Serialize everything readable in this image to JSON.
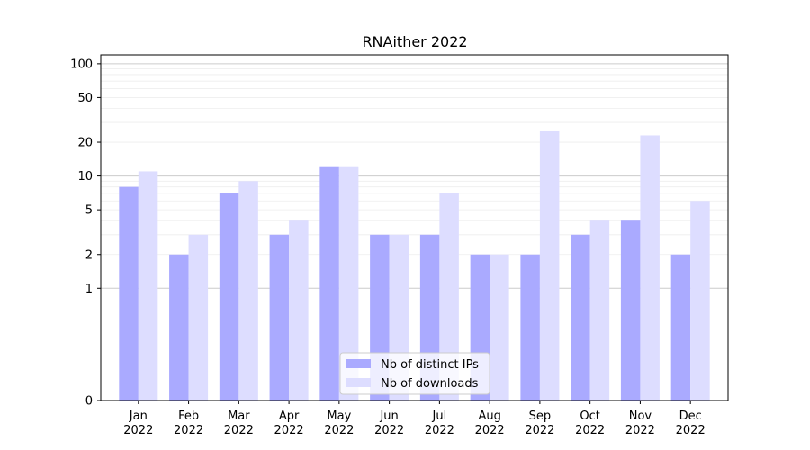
{
  "chart_data": {
    "type": "bar",
    "title": "RNAither 2022",
    "xlabel": "",
    "ylabel": "",
    "yscale": "symlog",
    "ylim": [
      0,
      120
    ],
    "yticks": [
      0,
      1,
      2,
      5,
      10,
      20,
      50,
      100
    ],
    "grid": true,
    "legend_position": "bottom-center",
    "categories": [
      [
        "Jan",
        "2022"
      ],
      [
        "Feb",
        "2022"
      ],
      [
        "Mar",
        "2022"
      ],
      [
        "Apr",
        "2022"
      ],
      [
        "May",
        "2022"
      ],
      [
        "Jun",
        "2022"
      ],
      [
        "Jul",
        "2022"
      ],
      [
        "Aug",
        "2022"
      ],
      [
        "Sep",
        "2022"
      ],
      [
        "Oct",
        "2022"
      ],
      [
        "Nov",
        "2022"
      ],
      [
        "Dec",
        "2022"
      ]
    ],
    "series": [
      {
        "name": "Nb of distinct IPs",
        "color": "#aaaaff",
        "values": [
          8,
          2,
          7,
          3,
          12,
          3,
          3,
          2,
          2,
          3,
          4,
          2
        ]
      },
      {
        "name": "Nb of downloads",
        "color": "#ddddff",
        "values": [
          11,
          3,
          9,
          4,
          12,
          3,
          7,
          2,
          25,
          4,
          23,
          6
        ]
      }
    ]
  }
}
